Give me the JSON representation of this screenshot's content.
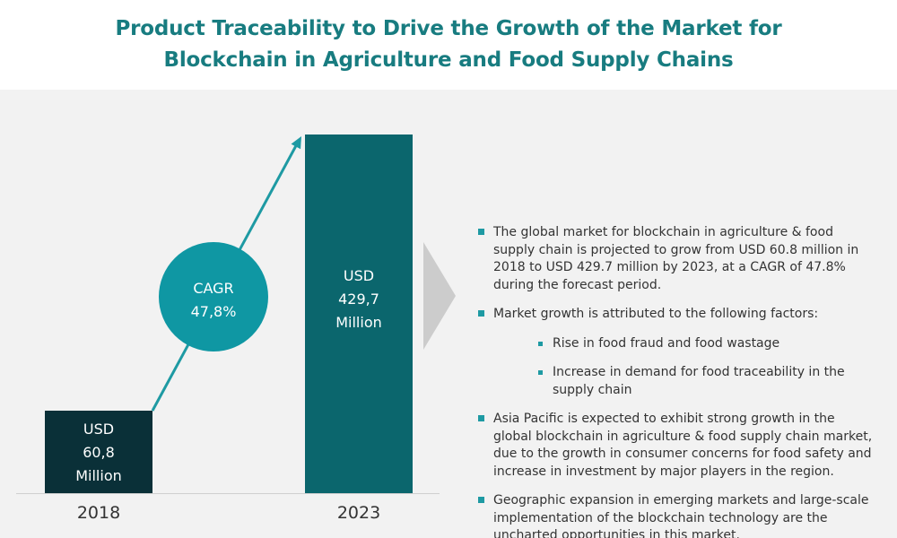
{
  "header": {
    "title": "Product Traceability to Drive the Growth of the Market for Blockchain in Agriculture and Food Supply Chains"
  },
  "colors": {
    "title": "#187c80",
    "bar_2018": "#0a3038",
    "bar_2023": "#0b666d",
    "cagr_circle": "#0f97a3",
    "arrow": "#1e9aa3",
    "chevron": "#cccccc",
    "panel_bg": "#f2f2f2"
  },
  "chart_data": {
    "type": "bar",
    "categories": [
      "2018",
      "2023"
    ],
    "values": [
      60.8,
      429.7
    ],
    "value_labels": [
      [
        "USD",
        "60,8",
        "Million"
      ],
      [
        "USD",
        "429,7",
        "Million"
      ]
    ],
    "growth_annotation": [
      "CAGR",
      "47,8%"
    ],
    "title": "",
    "xlabel": "",
    "ylabel": "",
    "ylim": [
      0,
      429.7
    ],
    "grid": false
  },
  "bullets": [
    {
      "text": "The global market for blockchain in agriculture & food supply chain is projected to grow from USD 60.8 million in 2018 to USD 429.7 million by 2023, at a CAGR of 47.8% during the forecast period."
    },
    {
      "text": "Market growth is attributed to the following factors:",
      "sub": [
        "Rise in food fraud and food wastage",
        "Increase in demand for food traceability in the supply chain"
      ]
    },
    {
      "text": "Asia Pacific is expected to exhibit strong growth in the global blockchain in agriculture & food supply chain market, due to the growth in consumer concerns for food safety and increase in investment by major players in the region."
    },
    {
      "text": "Geographic expansion in emerging markets and large-scale implementation of the blockchain technology are the uncharted opportunities in this market."
    }
  ]
}
